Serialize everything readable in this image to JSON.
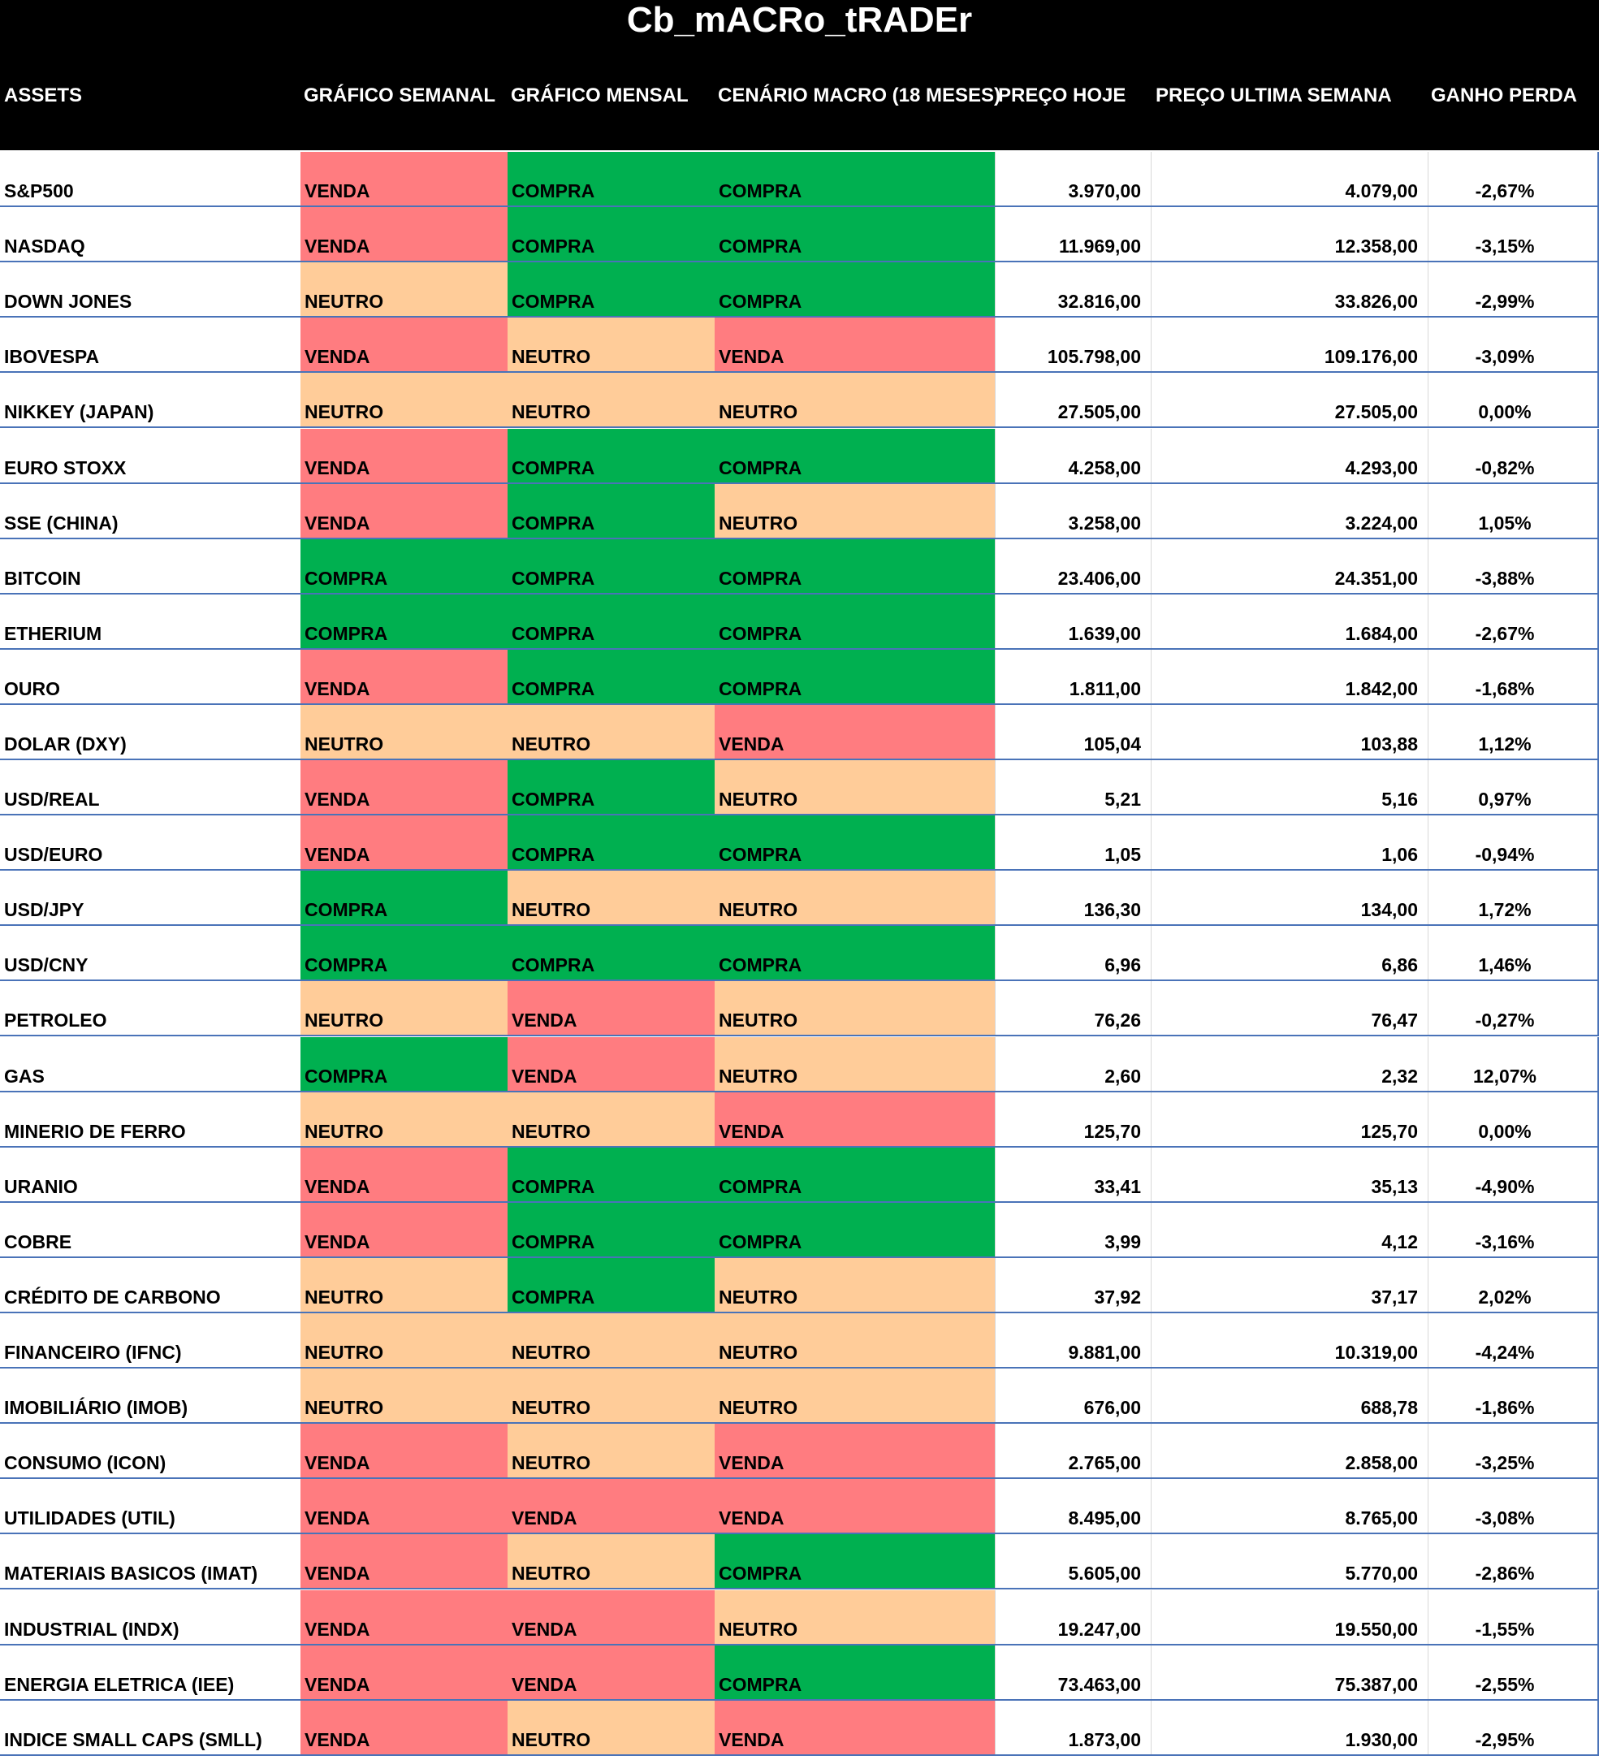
{
  "title": "Cb_mACRo_tRADEr",
  "colors": {
    "VENDA": "#ff7c80",
    "COMPRA": "#00b050",
    "NEUTRO": "#ffcc99",
    "header_bg": "#000000",
    "row_border": "#4a73b8"
  },
  "headers": {
    "assets": "ASSETS",
    "semanal": "GRÁFICO SEMANAL",
    "mensal": "GRÁFICO MENSAL",
    "macro": "CENÁRIO MACRO (18 MESES)",
    "hoje": "PREÇO HOJE",
    "ultima": "PREÇO ULTIMA SEMANA",
    "ganho": "GANHO PERDA"
  },
  "rows": [
    {
      "asset": "S&P500",
      "semanal": "VENDA",
      "mensal": "COMPRA",
      "macro": "COMPRA",
      "hoje": "3.970,00",
      "ultima": "4.079,00",
      "ganho": "-2,67%"
    },
    {
      "asset": "NASDAQ",
      "semanal": "VENDA",
      "mensal": "COMPRA",
      "macro": "COMPRA",
      "hoje": "11.969,00",
      "ultima": "12.358,00",
      "ganho": "-3,15%"
    },
    {
      "asset": "DOWN JONES",
      "semanal": "NEUTRO",
      "mensal": "COMPRA",
      "macro": "COMPRA",
      "hoje": "32.816,00",
      "ultima": "33.826,00",
      "ganho": "-2,99%"
    },
    {
      "asset": "IBOVESPA",
      "semanal": "VENDA",
      "mensal": "NEUTRO",
      "macro": "VENDA",
      "hoje": "105.798,00",
      "ultima": "109.176,00",
      "ganho": "-3,09%"
    },
    {
      "asset": "NIKKEY (JAPAN)",
      "semanal": "NEUTRO",
      "mensal": "NEUTRO",
      "macro": "NEUTRO",
      "hoje": "27.505,00",
      "ultima": "27.505,00",
      "ganho": "0,00%"
    },
    {
      "asset": "EURO STOXX",
      "semanal": "VENDA",
      "mensal": "COMPRA",
      "macro": "COMPRA",
      "hoje": "4.258,00",
      "ultima": "4.293,00",
      "ganho": "-0,82%"
    },
    {
      "asset": "SSE (CHINA)",
      "semanal": "VENDA",
      "mensal": "COMPRA",
      "macro": "NEUTRO",
      "hoje": "3.258,00",
      "ultima": "3.224,00",
      "ganho": "1,05%"
    },
    {
      "asset": "BITCOIN",
      "semanal": "COMPRA",
      "mensal": "COMPRA",
      "macro": "COMPRA",
      "hoje": "23.406,00",
      "ultima": "24.351,00",
      "ganho": "-3,88%"
    },
    {
      "asset": "ETHERIUM",
      "semanal": "COMPRA",
      "mensal": "COMPRA",
      "macro": "COMPRA",
      "hoje": "1.639,00",
      "ultima": "1.684,00",
      "ganho": "-2,67%"
    },
    {
      "asset": "OURO",
      "semanal": "VENDA",
      "mensal": "COMPRA",
      "macro": "COMPRA",
      "hoje": "1.811,00",
      "ultima": "1.842,00",
      "ganho": "-1,68%"
    },
    {
      "asset": "DOLAR (DXY)",
      "semanal": "NEUTRO",
      "mensal": "NEUTRO",
      "macro": "VENDA",
      "hoje": "105,04",
      "ultima": "103,88",
      "ganho": "1,12%"
    },
    {
      "asset": "USD/REAL",
      "semanal": "VENDA",
      "mensal": "COMPRA",
      "macro": "NEUTRO",
      "hoje": "5,21",
      "ultima": "5,16",
      "ganho": "0,97%"
    },
    {
      "asset": "USD/EURO",
      "semanal": "VENDA",
      "mensal": "COMPRA",
      "macro": "COMPRA",
      "hoje": "1,05",
      "ultima": "1,06",
      "ganho": "-0,94%"
    },
    {
      "asset": "USD/JPY",
      "semanal": "COMPRA",
      "mensal": "NEUTRO",
      "macro": "NEUTRO",
      "hoje": "136,30",
      "ultima": "134,00",
      "ganho": "1,72%"
    },
    {
      "asset": "USD/CNY",
      "semanal": "COMPRA",
      "mensal": "COMPRA",
      "macro": "COMPRA",
      "hoje": "6,96",
      "ultima": "6,86",
      "ganho": "1,46%"
    },
    {
      "asset": "PETROLEO",
      "semanal": "NEUTRO",
      "mensal": "VENDA",
      "macro": "NEUTRO",
      "hoje": "76,26",
      "ultima": "76,47",
      "ganho": "-0,27%"
    },
    {
      "asset": "GAS",
      "semanal": "COMPRA",
      "mensal": "VENDA",
      "macro": "NEUTRO",
      "hoje": "2,60",
      "ultima": "2,32",
      "ganho": "12,07%"
    },
    {
      "asset": "MINERIO DE FERRO",
      "semanal": "NEUTRO",
      "mensal": "NEUTRO",
      "macro": "VENDA",
      "hoje": "125,70",
      "ultima": "125,70",
      "ganho": "0,00%"
    },
    {
      "asset": "URANIO",
      "semanal": "VENDA",
      "mensal": "COMPRA",
      "macro": "COMPRA",
      "hoje": "33,41",
      "ultima": "35,13",
      "ganho": "-4,90%"
    },
    {
      "asset": "COBRE",
      "semanal": "VENDA",
      "mensal": "COMPRA",
      "macro": "COMPRA",
      "hoje": "3,99",
      "ultima": "4,12",
      "ganho": "-3,16%"
    },
    {
      "asset": "CRÉDITO DE CARBONO",
      "semanal": "NEUTRO",
      "mensal": "COMPRA",
      "macro": "NEUTRO",
      "hoje": "37,92",
      "ultima": "37,17",
      "ganho": "2,02%"
    },
    {
      "asset": "FINANCEIRO (IFNC)",
      "semanal": "NEUTRO",
      "mensal": "NEUTRO",
      "macro": "NEUTRO",
      "hoje": "9.881,00",
      "ultima": "10.319,00",
      "ganho": "-4,24%"
    },
    {
      "asset": "IMOBILIÁRIO (IMOB)",
      "semanal": "NEUTRO",
      "mensal": "NEUTRO",
      "macro": "NEUTRO",
      "hoje": "676,00",
      "ultima": "688,78",
      "ganho": "-1,86%"
    },
    {
      "asset": "CONSUMO (ICON)",
      "semanal": "VENDA",
      "mensal": "NEUTRO",
      "macro": "VENDA",
      "hoje": "2.765,00",
      "ultima": "2.858,00",
      "ganho": "-3,25%"
    },
    {
      "asset": "UTILIDADES (UTIL)",
      "semanal": "VENDA",
      "mensal": "VENDA",
      "macro": "VENDA",
      "hoje": "8.495,00",
      "ultima": "8.765,00",
      "ganho": "-3,08%"
    },
    {
      "asset": "MATERIAIS BASICOS (IMAT)",
      "semanal": "VENDA",
      "mensal": "NEUTRO",
      "macro": "COMPRA",
      "hoje": "5.605,00",
      "ultima": "5.770,00",
      "ganho": "-2,86%"
    },
    {
      "asset": "INDUSTRIAL (INDX)",
      "semanal": "VENDA",
      "mensal": "VENDA",
      "macro": "NEUTRO",
      "hoje": "19.247,00",
      "ultima": "19.550,00",
      "ganho": "-1,55%"
    },
    {
      "asset": "ENERGIA ELETRICA (IEE)",
      "semanal": "VENDA",
      "mensal": "VENDA",
      "macro": "COMPRA",
      "hoje": "73.463,00",
      "ultima": "75.387,00",
      "ganho": "-2,55%"
    },
    {
      "asset": "INDICE SMALL CAPS (SMLL)",
      "semanal": "VENDA",
      "mensal": "NEUTRO",
      "macro": "VENDA",
      "hoje": "1.873,00",
      "ultima": "1.930,00",
      "ganho": "-2,95%"
    }
  ]
}
